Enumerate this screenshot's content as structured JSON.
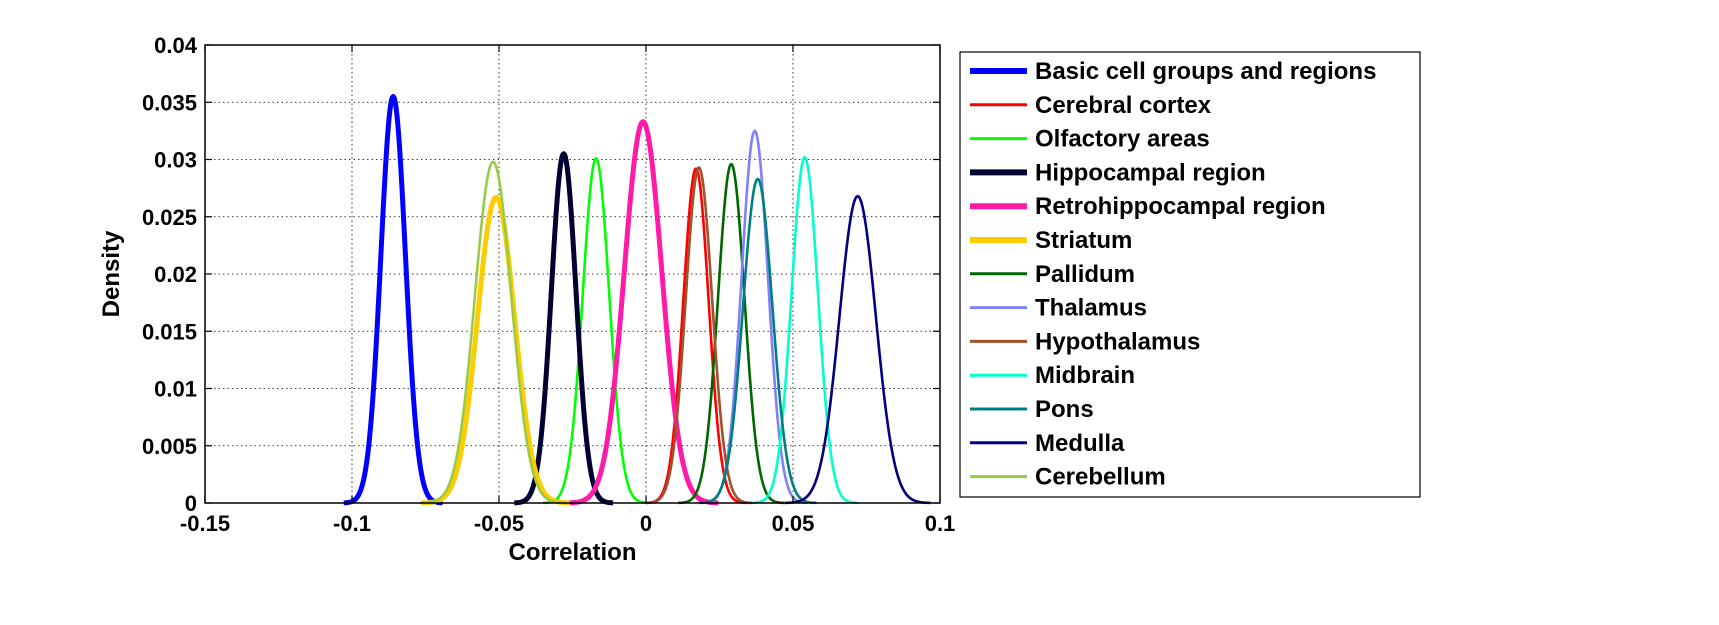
{
  "chart_data": {
    "type": "line",
    "title": "",
    "xlabel": "Correlation",
    "ylabel": "Density",
    "xlim": [
      -0.15,
      0.1
    ],
    "ylim": [
      0,
      0.04
    ],
    "xticks": [
      -0.15,
      -0.1,
      -0.05,
      0,
      0.05,
      0.1
    ],
    "xtick_labels": [
      "-0.15",
      "-0.1",
      "-0.05",
      "0",
      "0.05",
      "0.1"
    ],
    "yticks": [
      0,
      0.005,
      0.01,
      0.015,
      0.02,
      0.025,
      0.03,
      0.035,
      0.04
    ],
    "ytick_labels": [
      "0",
      "0.005",
      "0.01",
      "0.015",
      "0.02",
      "0.025",
      "0.03",
      "0.035",
      "0.04"
    ],
    "grid": true,
    "legend_position": "outside-right",
    "series": [
      {
        "name": "Basic cell groups and regions",
        "color": "#0000ff",
        "thick": true,
        "mu": -0.086,
        "sigma": 0.0042,
        "peak": 0.0355
      },
      {
        "name": "Cerebral cortex",
        "color": "#ff0000",
        "thick": false,
        "mu": 0.017,
        "sigma": 0.0043,
        "peak": 0.0292
      },
      {
        "name": "Olfactory areas",
        "color": "#00ff00",
        "thick": false,
        "mu": -0.017,
        "sigma": 0.0045,
        "peak": 0.0301
      },
      {
        "name": "Hippocampal region",
        "color": "#000033",
        "thick": true,
        "mu": -0.028,
        "sigma": 0.0042,
        "peak": 0.0305
      },
      {
        "name": "Retrohippocampal region",
        "color": "#ff1aa8",
        "thick": true,
        "mu": -0.001,
        "sigma": 0.0064,
        "peak": 0.0333
      },
      {
        "name": "Striatum",
        "color": "#ffcc00",
        "thick": true,
        "mu": -0.051,
        "sigma": 0.0063,
        "peak": 0.0267
      },
      {
        "name": "Pallidum",
        "color": "#006600",
        "thick": false,
        "mu": 0.029,
        "sigma": 0.0045,
        "peak": 0.0296
      },
      {
        "name": "Thalamus",
        "color": "#8080ff",
        "thick": false,
        "mu": 0.037,
        "sigma": 0.0045,
        "peak": 0.0325
      },
      {
        "name": "Hypothalamus",
        "color": "#a0522d",
        "thick": false,
        "mu": 0.018,
        "sigma": 0.0045,
        "peak": 0.0293
      },
      {
        "name": "Midbrain",
        "color": "#00ffcc",
        "thick": false,
        "mu": 0.054,
        "sigma": 0.0045,
        "peak": 0.0302
      },
      {
        "name": "Pons",
        "color": "#007f7f",
        "thick": false,
        "mu": 0.038,
        "sigma": 0.005,
        "peak": 0.0283
      },
      {
        "name": "Medulla",
        "color": "#000080",
        "thick": false,
        "mu": 0.072,
        "sigma": 0.0062,
        "peak": 0.0268
      },
      {
        "name": "Cerebellum",
        "color": "#99cc44",
        "thick": false,
        "mu": -0.052,
        "sigma": 0.0062,
        "peak": 0.0298
      }
    ]
  }
}
